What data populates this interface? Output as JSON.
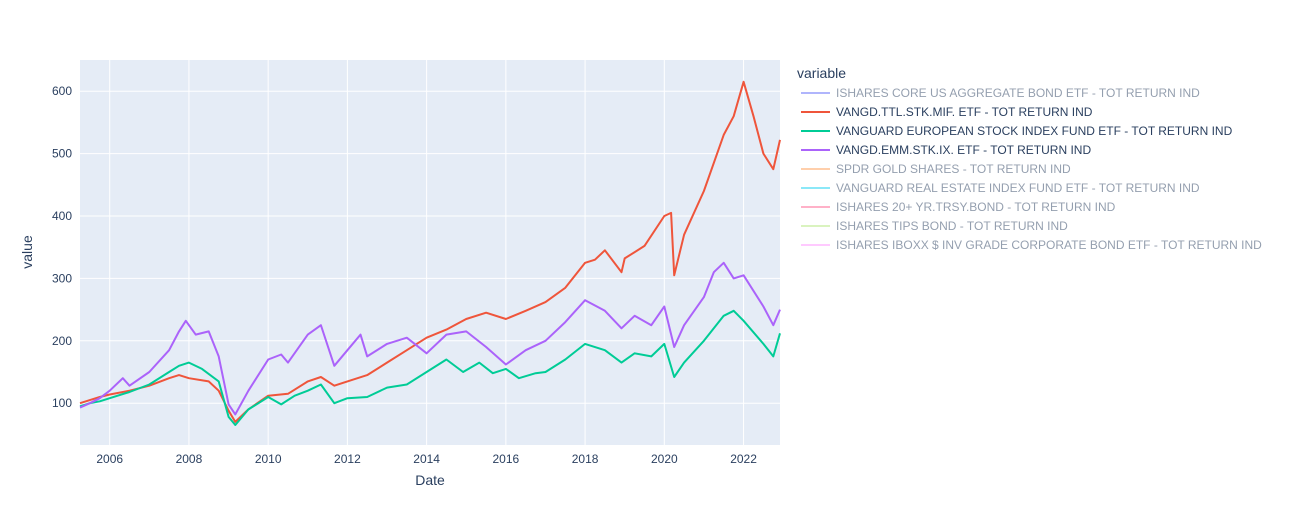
{
  "chart_data": {
    "type": "line",
    "xlabel": "Date",
    "ylabel": "value",
    "xlim": [
      2005.25,
      2022.92
    ],
    "ylim": [
      33,
      650
    ],
    "x_ticks": [
      2006,
      2008,
      2010,
      2012,
      2014,
      2016,
      2018,
      2020,
      2022
    ],
    "y_ticks": [
      100,
      200,
      300,
      400,
      500,
      600
    ],
    "grid": true,
    "legend": {
      "title": "variable",
      "position": "right"
    },
    "plot_bg": "#e5ecf6",
    "series": [
      {
        "name": "ISHARES CORE US AGGREGATE BOND ETF - TOT RETURN IND",
        "color": "#636efa",
        "visible": false,
        "points": []
      },
      {
        "name": "VANGD.TTL.STK.MIF. ETF - TOT RETURN IND",
        "color": "#ef553b",
        "visible": true,
        "points": [
          [
            2005.25,
            100
          ],
          [
            2005.5,
            105
          ],
          [
            2005.75,
            110
          ],
          [
            2006,
            114
          ],
          [
            2006.5,
            120
          ],
          [
            2007,
            128
          ],
          [
            2007.5,
            140
          ],
          [
            2007.75,
            145
          ],
          [
            2008,
            140
          ],
          [
            2008.5,
            135
          ],
          [
            2008.75,
            120
          ],
          [
            2009,
            88
          ],
          [
            2009.17,
            70
          ],
          [
            2009.5,
            90
          ],
          [
            2010,
            112
          ],
          [
            2010.5,
            115
          ],
          [
            2011,
            135
          ],
          [
            2011.33,
            142
          ],
          [
            2011.67,
            128
          ],
          [
            2012,
            135
          ],
          [
            2012.5,
            145
          ],
          [
            2013,
            165
          ],
          [
            2013.5,
            185
          ],
          [
            2014,
            205
          ],
          [
            2014.5,
            218
          ],
          [
            2015,
            235
          ],
          [
            2015.5,
            245
          ],
          [
            2016,
            235
          ],
          [
            2016.5,
            248
          ],
          [
            2017,
            262
          ],
          [
            2017.5,
            285
          ],
          [
            2018,
            325
          ],
          [
            2018.25,
            330
          ],
          [
            2018.5,
            345
          ],
          [
            2018.92,
            310
          ],
          [
            2019,
            332
          ],
          [
            2019.5,
            352
          ],
          [
            2020,
            400
          ],
          [
            2020.17,
            405
          ],
          [
            2020.25,
            305
          ],
          [
            2020.5,
            370
          ],
          [
            2021,
            440
          ],
          [
            2021.5,
            530
          ],
          [
            2021.75,
            560
          ],
          [
            2022,
            615
          ],
          [
            2022.25,
            560
          ],
          [
            2022.5,
            500
          ],
          [
            2022.75,
            475
          ],
          [
            2022.92,
            522
          ]
        ]
      },
      {
        "name": "VANGUARD EUROPEAN STOCK INDEX FUND ETF - TOT RETURN IND",
        "color": "#00cc96",
        "visible": true,
        "points": [
          [
            2005.25,
            95
          ],
          [
            2005.5,
            100
          ],
          [
            2005.75,
            103
          ],
          [
            2006,
            108
          ],
          [
            2006.5,
            118
          ],
          [
            2007,
            130
          ],
          [
            2007.5,
            150
          ],
          [
            2007.75,
            160
          ],
          [
            2008,
            165
          ],
          [
            2008.33,
            155
          ],
          [
            2008.75,
            135
          ],
          [
            2009,
            78
          ],
          [
            2009.17,
            65
          ],
          [
            2009.5,
            90
          ],
          [
            2010,
            110
          ],
          [
            2010.33,
            98
          ],
          [
            2010.67,
            112
          ],
          [
            2011,
            120
          ],
          [
            2011.33,
            130
          ],
          [
            2011.67,
            100
          ],
          [
            2012,
            108
          ],
          [
            2012.5,
            110
          ],
          [
            2013,
            125
          ],
          [
            2013.5,
            130
          ],
          [
            2014,
            150
          ],
          [
            2014.5,
            170
          ],
          [
            2014.92,
            150
          ],
          [
            2015.33,
            165
          ],
          [
            2015.67,
            148
          ],
          [
            2016,
            155
          ],
          [
            2016.33,
            140
          ],
          [
            2016.75,
            148
          ],
          [
            2017,
            150
          ],
          [
            2017.5,
            170
          ],
          [
            2018,
            195
          ],
          [
            2018.5,
            185
          ],
          [
            2018.92,
            165
          ],
          [
            2019.25,
            180
          ],
          [
            2019.67,
            175
          ],
          [
            2020,
            195
          ],
          [
            2020.25,
            142
          ],
          [
            2020.5,
            165
          ],
          [
            2021,
            200
          ],
          [
            2021.5,
            240
          ],
          [
            2021.75,
            248
          ],
          [
            2022,
            232
          ],
          [
            2022.5,
            195
          ],
          [
            2022.75,
            175
          ],
          [
            2022.92,
            212
          ]
        ]
      },
      {
        "name": "VANGD.EMM.STK.IX. ETF - TOT RETURN IND",
        "color": "#ab63fa",
        "visible": true,
        "points": [
          [
            2005.25,
            93
          ],
          [
            2005.5,
            100
          ],
          [
            2005.75,
            108
          ],
          [
            2006,
            120
          ],
          [
            2006.33,
            140
          ],
          [
            2006.5,
            128
          ],
          [
            2007,
            150
          ],
          [
            2007.5,
            185
          ],
          [
            2007.75,
            215
          ],
          [
            2007.92,
            232
          ],
          [
            2008.17,
            210
          ],
          [
            2008.5,
            215
          ],
          [
            2008.75,
            175
          ],
          [
            2009,
            98
          ],
          [
            2009.17,
            82
          ],
          [
            2009.5,
            120
          ],
          [
            2010,
            170
          ],
          [
            2010.33,
            178
          ],
          [
            2010.5,
            165
          ],
          [
            2011,
            210
          ],
          [
            2011.33,
            225
          ],
          [
            2011.67,
            160
          ],
          [
            2012,
            185
          ],
          [
            2012.33,
            210
          ],
          [
            2012.5,
            175
          ],
          [
            2013,
            195
          ],
          [
            2013.5,
            205
          ],
          [
            2014,
            180
          ],
          [
            2014.5,
            210
          ],
          [
            2015,
            215
          ],
          [
            2015.5,
            190
          ],
          [
            2016,
            162
          ],
          [
            2016.5,
            185
          ],
          [
            2017,
            200
          ],
          [
            2017.5,
            230
          ],
          [
            2018,
            265
          ],
          [
            2018.5,
            248
          ],
          [
            2018.92,
            220
          ],
          [
            2019.25,
            240
          ],
          [
            2019.67,
            225
          ],
          [
            2020,
            255
          ],
          [
            2020.25,
            190
          ],
          [
            2020.5,
            225
          ],
          [
            2021,
            270
          ],
          [
            2021.25,
            310
          ],
          [
            2021.5,
            325
          ],
          [
            2021.75,
            300
          ],
          [
            2022,
            305
          ],
          [
            2022.5,
            255
          ],
          [
            2022.75,
            225
          ],
          [
            2022.92,
            250
          ]
        ]
      },
      {
        "name": "SPDR GOLD SHARES - TOT RETURN IND",
        "color": "#ffa15a",
        "visible": false,
        "points": []
      },
      {
        "name": "VANGUARD REAL ESTATE INDEX FUND ETF - TOT RETURN IND",
        "color": "#19d3f3",
        "visible": false,
        "points": []
      },
      {
        "name": "ISHARES 20+ YR.TRSY.BOND - TOT RETURN IND",
        "color": "#ff6692",
        "visible": false,
        "points": []
      },
      {
        "name": "ISHARES TIPS BOND - TOT RETURN IND",
        "color": "#b6e880",
        "visible": false,
        "points": []
      },
      {
        "name": "ISHARES IBOXX $ INV GRADE CORPORATE BOND ETF - TOT RETURN IND",
        "color": "#ff97ff",
        "visible": false,
        "points": []
      }
    ]
  }
}
